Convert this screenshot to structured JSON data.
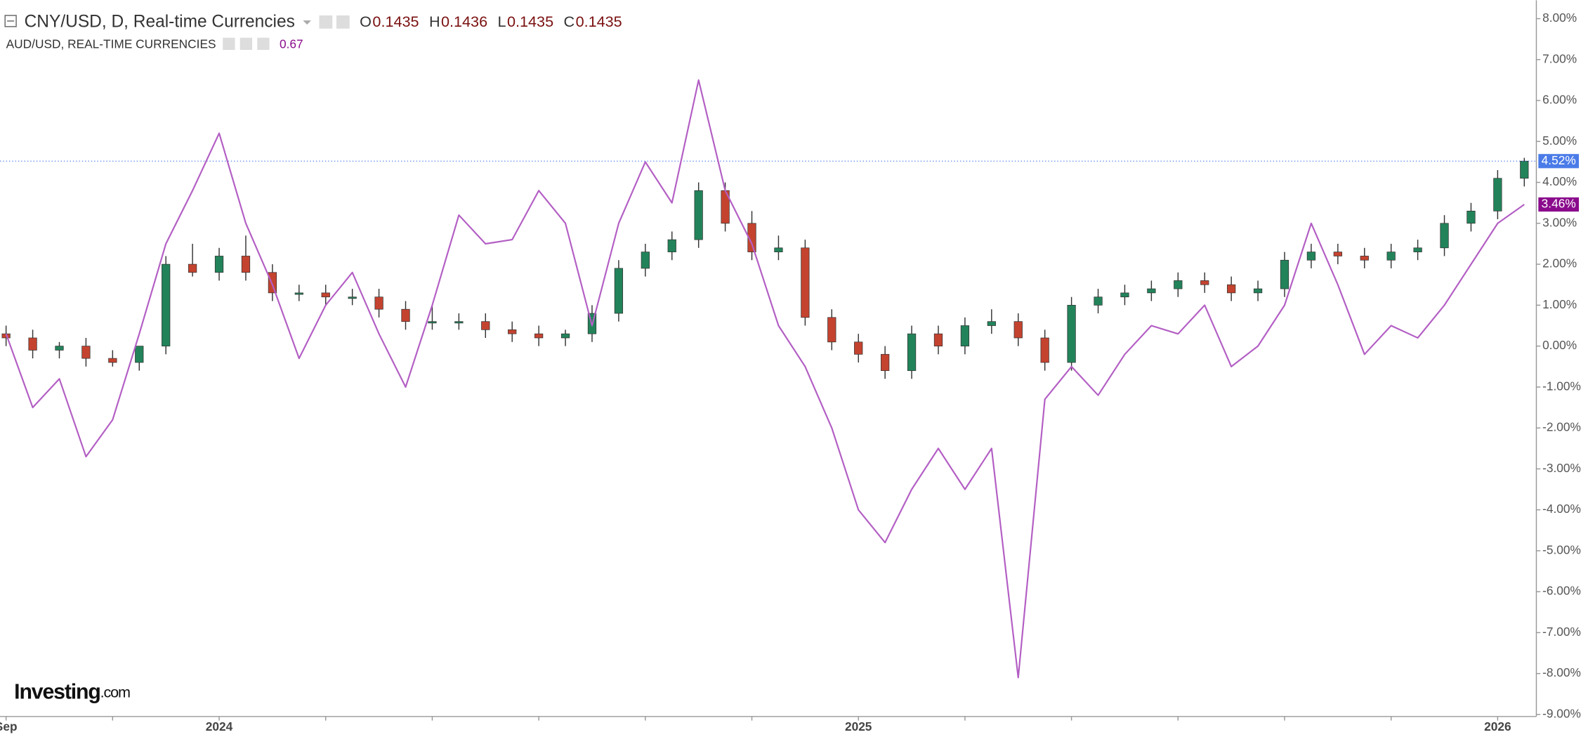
{
  "chart_data": {
    "type": "candlestick",
    "header": {
      "name": "CNY/USD, D, Real-time Currencies",
      "ohlc": [
        {
          "label": "O",
          "value": "0.1435"
        },
        {
          "label": "H",
          "value": "0.1436"
        },
        {
          "label": "L",
          "value": "0.1435"
        },
        {
          "label": "C",
          "value": "0.1435"
        }
      ]
    },
    "subheader": {
      "name": "AUD/USD, REAL-TIME CURRENCIES",
      "value": "0.67"
    },
    "logo": {
      "main": "Investing",
      "suffix": ".com"
    },
    "categories": [
      "Sep",
      null,
      null,
      null,
      null,
      null,
      null,
      null,
      "2024",
      null,
      null,
      null,
      null,
      null,
      null,
      null,
      null,
      null,
      null,
      null,
      null,
      null,
      null,
      null,
      null,
      null,
      null,
      null,
      null,
      null,
      null,
      null,
      "2025",
      null,
      null,
      null,
      null,
      null,
      null,
      null,
      null,
      null,
      null,
      null,
      null,
      null,
      null,
      null,
      null,
      null,
      null,
      null,
      null,
      null,
      null,
      null,
      "2026",
      null
    ],
    "ylim": [
      -9,
      8.45
    ],
    "yticks": [
      {
        "value": 8,
        "label": "8.00%"
      },
      {
        "value": 7,
        "label": "7.00%"
      },
      {
        "value": 6,
        "label": "6.00%"
      },
      {
        "value": 5,
        "label": "5.00%"
      },
      {
        "value": 4,
        "label": "4.00%"
      },
      {
        "value": 3,
        "label": "3.00%"
      },
      {
        "value": 2,
        "label": "2.00%"
      },
      {
        "value": 1,
        "label": "1.00%"
      },
      {
        "value": 0,
        "label": "0.00%"
      },
      {
        "value": -1,
        "label": "-1.00%"
      },
      {
        "value": -2,
        "label": "-2.00%"
      },
      {
        "value": -3,
        "label": "-3.00%"
      },
      {
        "value": -4,
        "label": "-4.00%"
      },
      {
        "value": -5,
        "label": "-5.00%"
      },
      {
        "value": -6,
        "label": "-6.00%"
      },
      {
        "value": -7,
        "label": "-7.00%"
      },
      {
        "value": -8,
        "label": "-8.00%"
      },
      {
        "value": -9,
        "label": "-9.00%"
      }
    ],
    "candles": {
      "name": "CNY/USD",
      "up_color": "#22835a",
      "down_color": "#c4432f",
      "label_color": "#4a7be8",
      "last_label": "4.52%",
      "open": [
        0.3,
        0.2,
        -0.1,
        0.0,
        -0.3,
        -0.4,
        0.0,
        2.0,
        1.8,
        2.2,
        1.8,
        1.3,
        1.3,
        1.2,
        1.2,
        0.9,
        0.6,
        0.6,
        0.6,
        0.4,
        0.3,
        0.2,
        0.3,
        0.8,
        1.9,
        2.3,
        2.6,
        3.8,
        3.0,
        2.3,
        2.4,
        0.7,
        0.1,
        -0.2,
        -0.6,
        0.3,
        0.0,
        0.5,
        0.6,
        0.2,
        -0.4,
        1.0,
        1.2,
        1.3,
        1.4,
        1.6,
        1.5,
        1.3,
        1.4,
        2.1,
        2.3,
        2.2,
        2.1,
        2.3,
        2.4,
        3.0,
        3.3,
        4.1
      ],
      "high": [
        0.5,
        0.4,
        0.1,
        0.2,
        -0.1,
        -0.2,
        2.2,
        2.5,
        2.4,
        2.7,
        2.0,
        1.5,
        1.5,
        1.4,
        1.4,
        1.1,
        1.0,
        0.8,
        0.8,
        0.6,
        0.5,
        0.4,
        1.0,
        2.1,
        2.5,
        2.8,
        4.0,
        4.0,
        3.3,
        2.7,
        2.6,
        0.9,
        0.3,
        0.0,
        0.5,
        0.5,
        0.7,
        0.9,
        0.8,
        0.4,
        1.2,
        1.4,
        1.5,
        1.6,
        1.8,
        1.8,
        1.7,
        1.6,
        2.3,
        2.5,
        2.5,
        2.4,
        2.5,
        2.6,
        3.2,
        3.5,
        4.3,
        4.6
      ],
      "low": [
        0.0,
        -0.3,
        -0.3,
        -0.5,
        -0.5,
        -0.6,
        -0.2,
        1.7,
        1.6,
        1.6,
        1.1,
        1.1,
        1.0,
        1.0,
        0.7,
        0.4,
        0.4,
        0.4,
        0.2,
        0.1,
        0.0,
        0.0,
        0.1,
        0.6,
        1.7,
        2.1,
        2.4,
        2.8,
        2.1,
        2.1,
        0.5,
        -0.1,
        -0.4,
        -0.8,
        -0.8,
        -0.2,
        -0.2,
        0.3,
        0.0,
        -0.6,
        -0.6,
        0.8,
        1.0,
        1.1,
        1.2,
        1.3,
        1.1,
        1.1,
        1.2,
        1.9,
        2.0,
        1.9,
        1.9,
        2.1,
        2.2,
        2.8,
        3.1,
        3.9
      ],
      "close": [
        0.2,
        -0.1,
        0.0,
        -0.3,
        -0.4,
        0.0,
        2.0,
        1.8,
        2.2,
        1.8,
        1.3,
        1.3,
        1.2,
        1.2,
        0.9,
        0.6,
        0.6,
        0.6,
        0.4,
        0.3,
        0.2,
        0.3,
        0.8,
        1.9,
        2.3,
        2.6,
        3.8,
        3.0,
        2.3,
        2.4,
        0.7,
        0.1,
        -0.2,
        -0.6,
        0.3,
        0.0,
        0.5,
        0.6,
        0.2,
        -0.4,
        1.0,
        1.2,
        1.3,
        1.4,
        1.6,
        1.5,
        1.3,
        1.4,
        2.1,
        2.3,
        2.2,
        2.1,
        2.3,
        2.4,
        3.0,
        3.3,
        4.1,
        4.52
      ]
    },
    "series": [
      {
        "name": "AUD/USD",
        "color": "#b35ec4",
        "label_color": "#8a0b8c",
        "last_label": "3.46%",
        "values": [
          0.3,
          -1.5,
          -0.8,
          -2.7,
          -1.8,
          0.3,
          2.5,
          3.8,
          5.2,
          3.0,
          1.5,
          -0.3,
          1.0,
          1.8,
          0.3,
          -1.0,
          1.0,
          3.2,
          2.5,
          2.6,
          3.8,
          3.0,
          0.5,
          3.0,
          4.5,
          3.5,
          6.5,
          3.8,
          2.5,
          0.5,
          -0.5,
          -2.0,
          -4.0,
          -4.8,
          -3.5,
          -2.5,
          -3.5,
          -2.5,
          -8.1,
          -1.3,
          -0.5,
          -1.2,
          -0.2,
          0.5,
          0.3,
          1.0,
          -0.5,
          0.0,
          1.0,
          3.0,
          1.5,
          -0.2,
          0.5,
          0.2,
          1.0,
          2.0,
          3.0,
          3.46
        ]
      }
    ]
  }
}
